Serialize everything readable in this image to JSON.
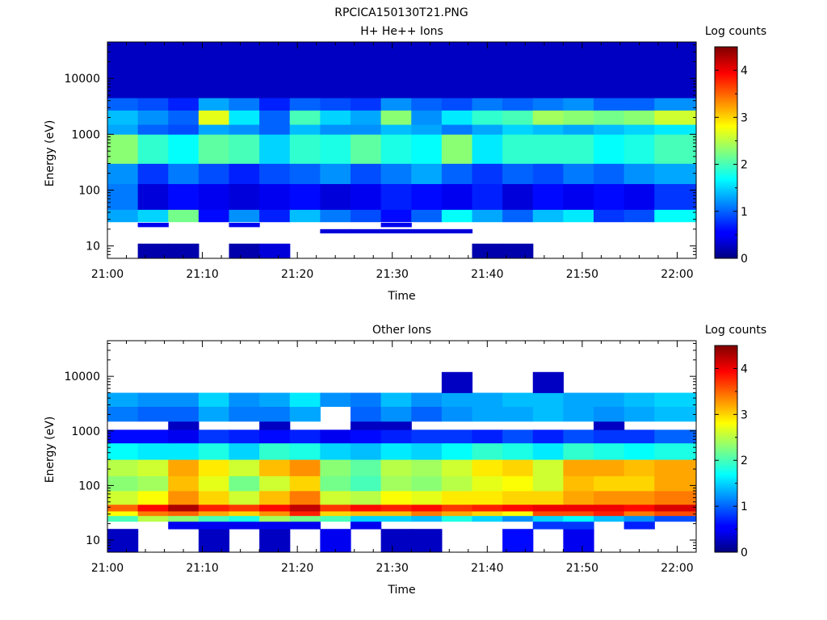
{
  "page_title": "RPCICA150130T21.PNG",
  "chart_data": [
    {
      "type": "heatmap",
      "title": "H+ He++ Ions",
      "xlabel": "Time",
      "ylabel": "Energy (eV)",
      "x_ticks": [
        "21:00",
        "21:10",
        "21:20",
        "21:30",
        "21:40",
        "21:50",
        "22:00"
      ],
      "x_range": [
        "21:00",
        "22:02"
      ],
      "y_scale": "log",
      "y_ticks": [
        "10",
        "100",
        "1000",
        "10000"
      ],
      "ylim": [
        6,
        45000
      ],
      "colorbar": {
        "label": "Log counts",
        "ticks": [
          "0",
          "1",
          "2",
          "3",
          "4"
        ],
        "range": [
          0,
          4.5
        ],
        "colormap": "jet"
      },
      "time_columns": [
        "21:00:00",
        "21:03:12",
        "21:06:24",
        "21:09:36",
        "21:12:48",
        "21:16:00",
        "21:19:12",
        "21:22:24",
        "21:25:36",
        "21:28:48",
        "21:32:00",
        "21:35:12",
        "21:38:24",
        "21:41:36",
        "21:44:48",
        "21:48:00",
        "21:51:12",
        "21:54:24",
        "21:57:36"
      ],
      "energy_bands": [
        {
          "e_low": 6,
          "e_high": 11,
          "values": [
            null,
            0.2,
            0.2,
            null,
            0.2,
            0.4,
            null,
            null,
            null,
            null,
            null,
            null,
            0.2,
            0.2,
            null,
            null,
            null,
            null,
            null
          ]
        },
        {
          "e_low": 17,
          "e_high": 20,
          "values": [
            null,
            null,
            null,
            null,
            null,
            null,
            null,
            0.4,
            0.4,
            0.4,
            0.4,
            0.4,
            null,
            null,
            null,
            null,
            null,
            null,
            null
          ]
        },
        {
          "e_low": 22,
          "e_high": 26,
          "values": [
            null,
            0.5,
            null,
            null,
            0.5,
            null,
            null,
            null,
            null,
            0.5,
            null,
            null,
            null,
            null,
            null,
            null,
            null,
            null,
            null
          ]
        },
        {
          "e_low": 27,
          "e_high": 45,
          "values": [
            1.3,
            1.5,
            2.2,
            0.6,
            1.2,
            0.7,
            1.4,
            1.1,
            0.9,
            0.6,
            1.0,
            1.7,
            1.3,
            1.0,
            1.4,
            1.6,
            0.8,
            0.9,
            1.7
          ]
        },
        {
          "e_low": 45,
          "e_high": 130,
          "values": [
            1.1,
            0.4,
            0.6,
            0.5,
            0.4,
            0.5,
            0.6,
            0.4,
            0.5,
            0.7,
            0.6,
            0.5,
            0.7,
            0.4,
            0.6,
            0.5,
            0.6,
            0.5,
            0.8
          ]
        },
        {
          "e_low": 130,
          "e_high": 300,
          "values": [
            1.2,
            0.8,
            1.1,
            0.9,
            0.7,
            0.9,
            1.0,
            1.2,
            0.9,
            1.1,
            1.3,
            1.0,
            0.8,
            1.0,
            0.9,
            1.1,
            1.0,
            1.2,
            1.3
          ]
        },
        {
          "e_low": 300,
          "e_high": 1000,
          "values": [
            2.3,
            1.9,
            1.7,
            2.1,
            2.0,
            1.5,
            1.9,
            1.8,
            2.1,
            1.8,
            1.7,
            2.3,
            1.6,
            1.9,
            1.9,
            1.9,
            1.7,
            1.8,
            2.0
          ]
        },
        {
          "e_low": 1000,
          "e_high": 1500,
          "values": [
            1.3,
            1.0,
            0.9,
            1.3,
            1.2,
            1.0,
            1.4,
            1.2,
            1.2,
            1.4,
            1.3,
            1.1,
            1.3,
            1.5,
            1.4,
            1.3,
            1.4,
            1.5,
            1.6
          ]
        },
        {
          "e_low": 1500,
          "e_high": 2700,
          "values": [
            1.4,
            1.2,
            1.0,
            2.7,
            1.6,
            1.0,
            2.0,
            1.5,
            1.3,
            2.3,
            1.2,
            1.6,
            1.9,
            2.0,
            2.4,
            2.3,
            2.2,
            2.3,
            2.6
          ]
        },
        {
          "e_low": 2700,
          "e_high": 4500,
          "values": [
            1.0,
            0.9,
            0.7,
            1.3,
            1.1,
            0.7,
            1.0,
            0.9,
            0.8,
            1.2,
            1.0,
            0.9,
            1.1,
            1.0,
            1.1,
            1.2,
            1.0,
            1.0,
            1.2
          ]
        },
        {
          "e_low": 4500,
          "e_high": 45000,
          "values": [
            0.3,
            0.3,
            0.3,
            0.3,
            0.3,
            0.3,
            0.3,
            0.3,
            0.3,
            0.3,
            0.3,
            0.3,
            0.3,
            0.3,
            0.3,
            0.3,
            0.3,
            0.3,
            0.3
          ]
        }
      ]
    },
    {
      "type": "heatmap",
      "title": "Other Ions",
      "xlabel": "Time",
      "ylabel": "Energy (eV)",
      "x_ticks": [
        "21:00",
        "21:10",
        "21:20",
        "21:30",
        "21:40",
        "21:50",
        "22:00"
      ],
      "x_range": [
        "21:00",
        "22:02"
      ],
      "y_scale": "log",
      "y_ticks": [
        "10",
        "100",
        "1000",
        "10000"
      ],
      "ylim": [
        6,
        45000
      ],
      "colorbar": {
        "label": "Log counts",
        "ticks": [
          "0",
          "1",
          "2",
          "3",
          "4"
        ],
        "range": [
          0,
          4.5
        ],
        "colormap": "jet"
      },
      "time_columns": [
        "21:00:00",
        "21:03:12",
        "21:06:24",
        "21:09:36",
        "21:12:48",
        "21:16:00",
        "21:19:12",
        "21:22:24",
        "21:25:36",
        "21:28:48",
        "21:32:00",
        "21:35:12",
        "21:38:24",
        "21:41:36",
        "21:44:48",
        "21:48:00",
        "21:51:12",
        "21:54:24",
        "21:57:36"
      ],
      "energy_bands": [
        {
          "e_low": 6,
          "e_high": 16,
          "values": [
            0.3,
            null,
            null,
            0.3,
            null,
            0.3,
            null,
            0.5,
            null,
            0.3,
            0.3,
            null,
            null,
            0.6,
            null,
            0.5,
            null,
            null,
            null
          ]
        },
        {
          "e_low": 16,
          "e_high": 22,
          "values": [
            null,
            null,
            0.5,
            0.5,
            0.5,
            0.5,
            0.5,
            null,
            0.5,
            null,
            null,
            null,
            null,
            null,
            0.8,
            0.8,
            null,
            0.7,
            null
          ]
        },
        {
          "e_low": 22,
          "e_high": 28,
          "values": [
            2.0,
            2.5,
            2.3,
            2.0,
            1.8,
            2.4,
            2.2,
            2.0,
            1.5,
            1.5,
            1.4,
            1.8,
            1.5,
            1.2,
            1.5,
            1.7,
            1.4,
            1.2,
            0.9
          ]
        },
        {
          "e_low": 28,
          "e_high": 34,
          "values": [
            2.8,
            3.4,
            3.5,
            3.2,
            3.0,
            3.3,
            3.8,
            3.0,
            3.1,
            3.1,
            3.4,
            3.2,
            3.0,
            2.8,
            3.6,
            3.6,
            3.8,
            3.4,
            3.6
          ]
        },
        {
          "e_low": 34,
          "e_high": 45,
          "values": [
            3.5,
            3.9,
            4.3,
            3.8,
            3.7,
            3.9,
            4.2,
            3.7,
            3.9,
            3.8,
            3.9,
            3.7,
            3.8,
            3.9,
            4.0,
            4.0,
            4.0,
            3.9,
            4.1
          ]
        },
        {
          "e_low": 45,
          "e_high": 80,
          "values": [
            2.6,
            2.8,
            3.3,
            3.0,
            2.6,
            3.1,
            3.4,
            2.6,
            2.5,
            2.8,
            2.7,
            2.9,
            2.9,
            3.0,
            3.0,
            3.2,
            3.3,
            3.3,
            3.4
          ]
        },
        {
          "e_low": 80,
          "e_high": 150,
          "values": [
            2.3,
            2.4,
            3.1,
            2.7,
            2.2,
            2.6,
            3.0,
            2.2,
            2.0,
            2.4,
            2.3,
            2.5,
            2.7,
            2.8,
            2.6,
            3.1,
            3.0,
            3.0,
            3.2
          ]
        },
        {
          "e_low": 150,
          "e_high": 300,
          "values": [
            2.5,
            2.6,
            3.2,
            2.9,
            2.6,
            3.1,
            3.3,
            2.3,
            2.1,
            2.5,
            2.4,
            2.6,
            2.9,
            3.0,
            2.6,
            3.2,
            3.2,
            3.1,
            3.2
          ]
        },
        {
          "e_low": 300,
          "e_high": 600,
          "values": [
            1.7,
            1.6,
            1.6,
            1.8,
            1.5,
            1.9,
            1.8,
            1.5,
            1.4,
            1.6,
            1.5,
            1.7,
            1.9,
            1.8,
            1.6,
            1.9,
            1.8,
            1.7,
            1.8
          ]
        },
        {
          "e_low": 600,
          "e_high": 1050,
          "values": [
            0.6,
            0.6,
            0.5,
            0.8,
            0.7,
            0.6,
            0.7,
            0.5,
            0.6,
            0.7,
            0.8,
            0.8,
            0.7,
            0.9,
            0.7,
            0.9,
            0.8,
            0.8,
            1.0
          ]
        },
        {
          "e_low": 1050,
          "e_high": 1500,
          "values": [
            null,
            null,
            0.3,
            null,
            null,
            0.3,
            null,
            null,
            0.3,
            0.3,
            null,
            null,
            null,
            null,
            null,
            null,
            0.3,
            null,
            null
          ]
        },
        {
          "e_low": 1500,
          "e_high": 2800,
          "values": [
            1.1,
            1.0,
            1.0,
            1.3,
            1.1,
            1.1,
            1.3,
            null,
            1.0,
            1.2,
            1.0,
            1.2,
            1.3,
            1.3,
            1.4,
            1.3,
            1.2,
            1.3,
            1.4
          ]
        },
        {
          "e_low": 2800,
          "e_high": 5000,
          "values": [
            1.3,
            1.2,
            1.2,
            1.5,
            1.2,
            1.3,
            1.6,
            1.2,
            1.1,
            1.4,
            1.2,
            1.3,
            1.3,
            1.4,
            1.4,
            1.3,
            1.3,
            1.4,
            1.5
          ]
        },
        {
          "e_low": 5000,
          "e_high": 12000,
          "values": [
            null,
            null,
            null,
            null,
            null,
            null,
            null,
            null,
            null,
            null,
            null,
            0.3,
            null,
            null,
            0.3,
            null,
            null,
            null,
            null
          ]
        }
      ]
    }
  ]
}
